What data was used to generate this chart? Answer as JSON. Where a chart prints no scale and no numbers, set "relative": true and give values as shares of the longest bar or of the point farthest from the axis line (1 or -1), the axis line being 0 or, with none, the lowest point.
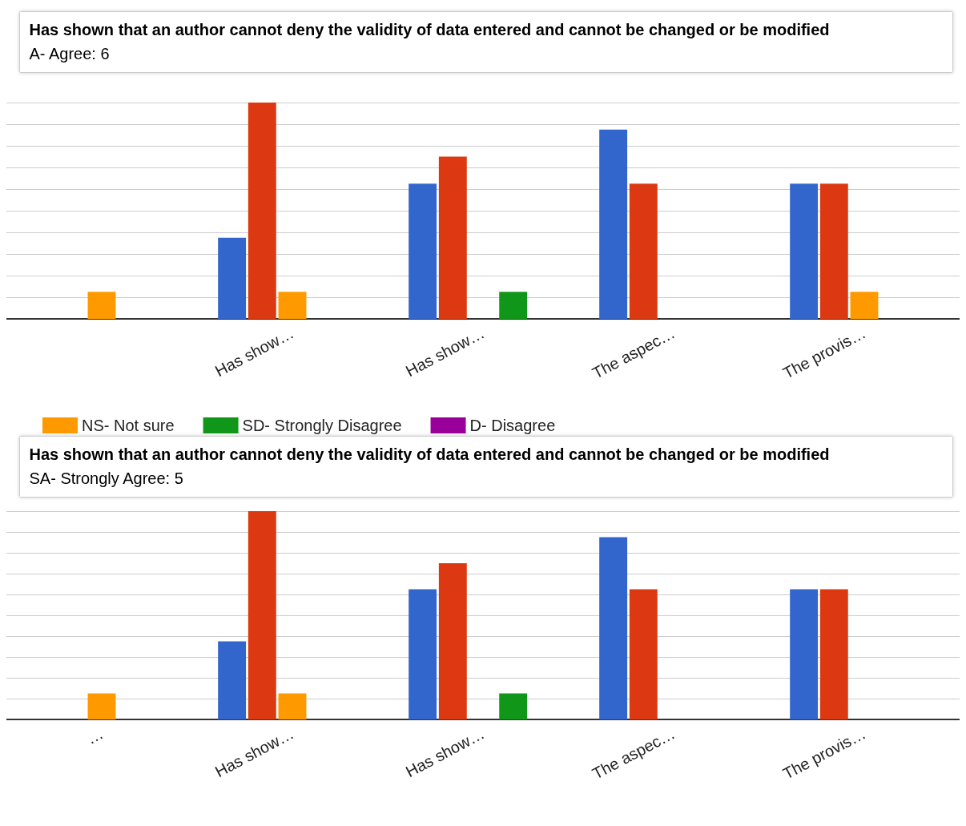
{
  "chart_data": [
    {
      "type": "bar",
      "categories": [
        null,
        "Has show…",
        "Has show…",
        "The aspec…",
        "The provis…"
      ],
      "legend": false,
      "grid": "y",
      "relative": true,
      "series": [
        {
          "color": "#3366cc",
          "values": [
            null,
            0.375,
            0.625,
            0.875,
            0.625
          ]
        },
        {
          "color": "#dc3912",
          "values": [
            null,
            1,
            0.75,
            0.625,
            0.625
          ]
        },
        {
          "color": "#ff9900",
          "values": [
            0.125,
            0.125,
            0,
            0,
            0.125
          ]
        },
        {
          "color": "#109618",
          "values": [
            0,
            0,
            0.125,
            0,
            null
          ]
        },
        {
          "color": "#990099",
          "values": [
            0,
            0,
            0,
            0,
            null
          ]
        }
      ],
      "annotations": [
        "Has shown that an author cannot deny the validity of data entered and cannot be changed or be modified",
        "A- Agree: 6"
      ]
    },
    {
      "type": "bar",
      "categories": [
        "…",
        "Has show…",
        "Has show…",
        "The aspec…",
        "The provis…"
      ],
      "legend": "top left",
      "grid": "y",
      "relative": true,
      "series": [
        {
          "color": "#3366cc",
          "values": [
            null,
            0.375,
            0.625,
            0.875,
            0.625
          ]
        },
        {
          "color": "#dc3912",
          "values": [
            null,
            1,
            0.75,
            0.625,
            0.625
          ]
        },
        {
          "name": "NS- Not sure",
          "color": "#ff9900",
          "values": [
            0.125,
            0.125,
            0,
            0,
            null
          ]
        },
        {
          "name": "SD- Strongly Disagree",
          "color": "#109618",
          "values": [
            0,
            0,
            0.125,
            0,
            null
          ]
        },
        {
          "name": "D- Disagree",
          "color": "#990099",
          "values": [
            0,
            0,
            0,
            0,
            null
          ]
        }
      ],
      "annotations": [
        "Has shown that an author cannot deny the validity of data entered and cannot be changed or be modified",
        "SA- Strongly Agree: 5"
      ]
    }
  ]
}
